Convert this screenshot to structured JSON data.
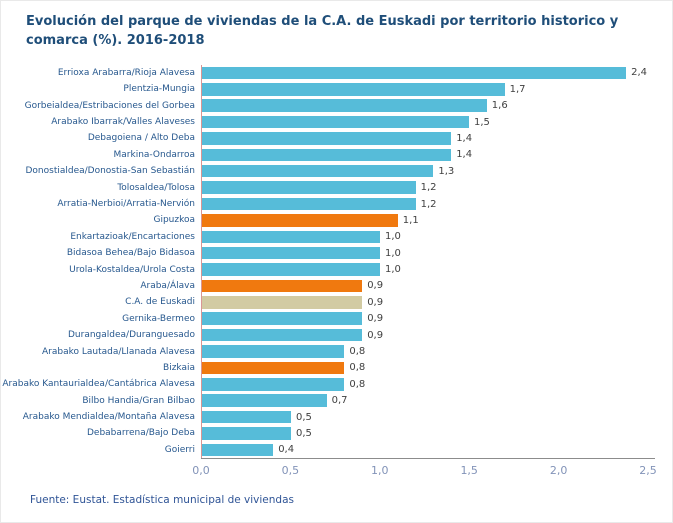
{
  "colors": {
    "blue": "#56BCD9",
    "orange": "#F0790F",
    "tan": "#D2CBA3",
    "title_blue": "#1F4E79",
    "label_blue": "#27588E",
    "tick_blue": "#8293B8",
    "footer_blue": "#2F5496",
    "value_text": "#404040",
    "axis_left": "#D99694",
    "axis_bottom": "#8C8C8C"
  },
  "chart_data": {
    "type": "bar",
    "orientation": "horizontal",
    "title": "Evolución del parque de viviendas de la C.A. de Euskadi por territorio historico y comarca (%). 2016-2018",
    "source": "Fuente: Eustat. Estadística municipal de viviendas",
    "xlabel": "",
    "ylabel": "",
    "xlim": [
      0,
      2.5
    ],
    "x_ticks": [
      "0,0",
      "0,5",
      "1,0",
      "1,5",
      "2,0",
      "2,5"
    ],
    "grid": false,
    "legend": false,
    "rows": [
      {
        "label": "Errioxa Arabarra/Rioja Alavesa",
        "value": 2.4,
        "display": "2,4",
        "color_key": "blue"
      },
      {
        "label": "Plentzia-Mungia",
        "value": 1.7,
        "display": "1,7",
        "color_key": "blue"
      },
      {
        "label": "Gorbeialdea/Estribaciones del Gorbea",
        "value": 1.6,
        "display": "1,6",
        "color_key": "blue"
      },
      {
        "label": "Arabako Ibarrak/Valles Alaveses",
        "value": 1.5,
        "display": "1,5",
        "color_key": "blue"
      },
      {
        "label": "Debagoiena / Alto Deba",
        "value": 1.4,
        "display": "1,4",
        "color_key": "blue"
      },
      {
        "label": "Markina-Ondarroa",
        "value": 1.4,
        "display": "1,4",
        "color_key": "blue"
      },
      {
        "label": "Donostialdea/Donostia-San Sebastián",
        "value": 1.3,
        "display": "1,3",
        "color_key": "blue"
      },
      {
        "label": "Tolosaldea/Tolosa",
        "value": 1.2,
        "display": "1,2",
        "color_key": "blue"
      },
      {
        "label": "Arratia-Nerbioi/Arratia-Nervión",
        "value": 1.2,
        "display": "1,2",
        "color_key": "blue"
      },
      {
        "label": "Gipuzkoa",
        "value": 1.1,
        "display": "1,1",
        "color_key": "orange"
      },
      {
        "label": "Enkartazioak/Encartaciones",
        "value": 1.0,
        "display": "1,0",
        "color_key": "blue"
      },
      {
        "label": "Bidasoa Behea/Bajo Bidasoa",
        "value": 1.0,
        "display": "1,0",
        "color_key": "blue"
      },
      {
        "label": "Urola-Kostaldea/Urola Costa",
        "value": 1.0,
        "display": "1,0",
        "color_key": "blue"
      },
      {
        "label": "Araba/Álava",
        "value": 0.9,
        "display": "0,9",
        "color_key": "orange"
      },
      {
        "label": "C.A. de Euskadi",
        "value": 0.9,
        "display": "0,9",
        "color_key": "tan"
      },
      {
        "label": "Gernika-Bermeo",
        "value": 0.9,
        "display": "0,9",
        "color_key": "blue"
      },
      {
        "label": "Durangaldea/Duranguesado",
        "value": 0.9,
        "display": "0,9",
        "color_key": "blue"
      },
      {
        "label": "Arabako Lautada/Llanada Alavesa",
        "value": 0.8,
        "display": "0,8",
        "color_key": "blue"
      },
      {
        "label": "Bizkaia",
        "value": 0.8,
        "display": "0,8",
        "color_key": "orange"
      },
      {
        "label": "Arabako Kantaurialdea/Cantábrica Alavesa",
        "value": 0.8,
        "display": "0,8",
        "color_key": "blue"
      },
      {
        "label": "Bilbo Handia/Gran Bilbao",
        "value": 0.7,
        "display": "0,7",
        "color_key": "blue"
      },
      {
        "label": "Arabako Mendialdea/Montaña Alavesa",
        "value": 0.5,
        "display": "0,5",
        "color_key": "blue"
      },
      {
        "label": "Debabarrena/Bajo Deba",
        "value": 0.5,
        "display": "0,5",
        "color_key": "blue"
      },
      {
        "label": "Goierri",
        "value": 0.4,
        "display": "0,4",
        "color_key": "blue"
      }
    ]
  }
}
